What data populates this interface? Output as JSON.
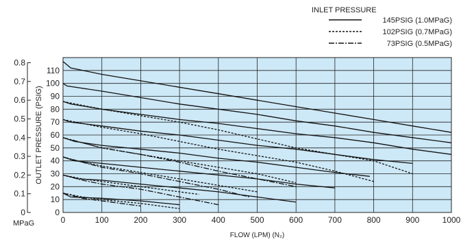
{
  "chart_data": {
    "type": "line",
    "title": "",
    "xlabel": "FLOW (LPM) (N₂)",
    "ylabel": "OUTLET PRESSURE (PSIG)",
    "secondary_ylabel": "MPaG",
    "xlim": [
      0,
      1000
    ],
    "ylim": [
      0,
      120
    ],
    "x_ticks": [
      "0",
      "100",
      "200",
      "300",
      "400",
      "500",
      "600",
      "700",
      "800",
      "900",
      "1000"
    ],
    "y_ticks": [
      "0",
      "10",
      "20",
      "30",
      "40",
      "50",
      "60",
      "70",
      "80",
      "90",
      "100",
      "110"
    ],
    "mpa_ticks": [
      {
        "label": "0",
        "psi": 0
      },
      {
        "label": "0.1",
        "psi": 14.5
      },
      {
        "label": "0.2",
        "psi": 29
      },
      {
        "label": "0.3",
        "psi": 43.5
      },
      {
        "label": "0.4",
        "psi": 58
      },
      {
        "label": "0.5",
        "psi": 72.5
      },
      {
        "label": "0.6",
        "psi": 87
      },
      {
        "label": "0.7",
        "psi": 101.5
      },
      {
        "label": "0.8",
        "psi": 116
      }
    ],
    "grid": true,
    "background": "#cde8f6",
    "legend_title": "INLET PRESSURE",
    "legend_position": "top-right",
    "series": [
      {
        "name": "145PSIG (1.0MPaG)",
        "style": "solid",
        "curves": [
          [
            [
              0,
              117
            ],
            [
              20,
              112
            ],
            [
              100,
              107
            ],
            [
              200,
              102
            ],
            [
              300,
              97
            ],
            [
              400,
              92
            ],
            [
              500,
              87
            ],
            [
              600,
              82
            ],
            [
              700,
              77
            ],
            [
              800,
              72
            ],
            [
              900,
              67
            ],
            [
              1000,
              62
            ]
          ],
          [
            [
              0,
              100
            ],
            [
              10,
              98
            ],
            [
              100,
              94
            ],
            [
              200,
              89
            ],
            [
              300,
              84
            ],
            [
              400,
              80
            ],
            [
              500,
              76
            ],
            [
              600,
              71
            ],
            [
              700,
              67
            ],
            [
              800,
              62
            ],
            [
              900,
              58
            ],
            [
              1000,
              54
            ]
          ],
          [
            [
              0,
              86
            ],
            [
              20,
              84
            ],
            [
              100,
              80
            ],
            [
              200,
              76
            ],
            [
              300,
              72
            ],
            [
              400,
              69
            ],
            [
              500,
              65
            ],
            [
              600,
              61
            ],
            [
              700,
              58
            ],
            [
              800,
              54
            ],
            [
              900,
              49
            ],
            [
              1000,
              45
            ]
          ],
          [
            [
              0,
              72
            ],
            [
              20,
              70
            ],
            [
              100,
              67
            ],
            [
              200,
              63
            ],
            [
              300,
              60
            ],
            [
              400,
              56
            ],
            [
              500,
              52
            ],
            [
              600,
              49
            ],
            [
              700,
              45
            ],
            [
              800,
              41
            ],
            [
              900,
              38
            ]
          ],
          [
            [
              0,
              58
            ],
            [
              30,
              55
            ],
            [
              100,
              52
            ],
            [
              200,
              49
            ],
            [
              300,
              46
            ],
            [
              400,
              42
            ],
            [
              500,
              39
            ],
            [
              600,
              35
            ],
            [
              700,
              31
            ],
            [
              790,
              28
            ]
          ],
          [
            [
              0,
              43
            ],
            [
              30,
              40
            ],
            [
              100,
              38
            ],
            [
              200,
              35
            ],
            [
              300,
              32
            ],
            [
              400,
              29
            ],
            [
              500,
              26
            ],
            [
              600,
              22
            ],
            [
              700,
              19
            ]
          ],
          [
            [
              0,
              29
            ],
            [
              40,
              26
            ],
            [
              100,
              25
            ],
            [
              200,
              22
            ],
            [
              300,
              19
            ],
            [
              400,
              16
            ],
            [
              500,
              12
            ],
            [
              600,
              8
            ]
          ],
          [
            [
              0,
              15
            ],
            [
              20,
              12
            ],
            [
              100,
              11
            ],
            [
              200,
              9
            ],
            [
              300,
              6
            ]
          ]
        ]
      },
      {
        "name": "102PSIG (0.7MPaG)",
        "style": "dashed",
        "curves": [
          [
            [
              0,
              86
            ],
            [
              50,
              83
            ],
            [
              100,
              80
            ],
            [
              200,
              75
            ],
            [
              300,
              70
            ],
            [
              400,
              64
            ],
            [
              500,
              57
            ],
            [
              600,
              50
            ],
            [
              700,
              45
            ],
            [
              800,
              40
            ],
            [
              900,
              30
            ]
          ],
          [
            [
              0,
              72
            ],
            [
              50,
              69
            ],
            [
              100,
              66
            ],
            [
              200,
              61
            ],
            [
              300,
              55
            ],
            [
              400,
              49
            ],
            [
              500,
              44
            ],
            [
              600,
              39
            ],
            [
              700,
              32
            ],
            [
              800,
              24
            ]
          ],
          [
            [
              0,
              58
            ],
            [
              50,
              54
            ],
            [
              100,
              50
            ],
            [
              200,
              45
            ],
            [
              300,
              40
            ],
            [
              400,
              35
            ],
            [
              500,
              30
            ],
            [
              600,
              23
            ]
          ],
          [
            [
              0,
              43
            ],
            [
              50,
              39
            ],
            [
              100,
              36
            ],
            [
              200,
              31
            ],
            [
              300,
              26
            ],
            [
              400,
              21
            ],
            [
              500,
              16
            ]
          ],
          [
            [
              0,
              29
            ],
            [
              50,
              26
            ],
            [
              100,
              24
            ],
            [
              200,
              20
            ],
            [
              300,
              16
            ],
            [
              350,
              14
            ]
          ],
          [
            [
              0,
              15
            ],
            [
              50,
              12
            ],
            [
              100,
              10
            ],
            [
              200,
              7
            ],
            [
              300,
              3
            ]
          ]
        ]
      },
      {
        "name": "73PSIG (0.5MPaG)",
        "style": "dashdot",
        "curves": [
          [
            [
              0,
              58
            ],
            [
              50,
              54
            ],
            [
              100,
              50
            ],
            [
              200,
              45
            ],
            [
              300,
              39
            ],
            [
              400,
              32
            ],
            [
              500,
              26
            ],
            [
              600,
              20
            ]
          ],
          [
            [
              0,
              43
            ],
            [
              50,
              39
            ],
            [
              100,
              35
            ],
            [
              200,
              30
            ],
            [
              300,
              24
            ],
            [
              400,
              18
            ],
            [
              480,
              12
            ]
          ],
          [
            [
              0,
              29
            ],
            [
              50,
              25
            ],
            [
              100,
              22
            ],
            [
              200,
              18
            ],
            [
              300,
              12
            ],
            [
              400,
              6
            ]
          ],
          [
            [
              0,
              15
            ],
            [
              50,
              11
            ],
            [
              100,
              9
            ],
            [
              200,
              5
            ]
          ]
        ]
      }
    ]
  }
}
